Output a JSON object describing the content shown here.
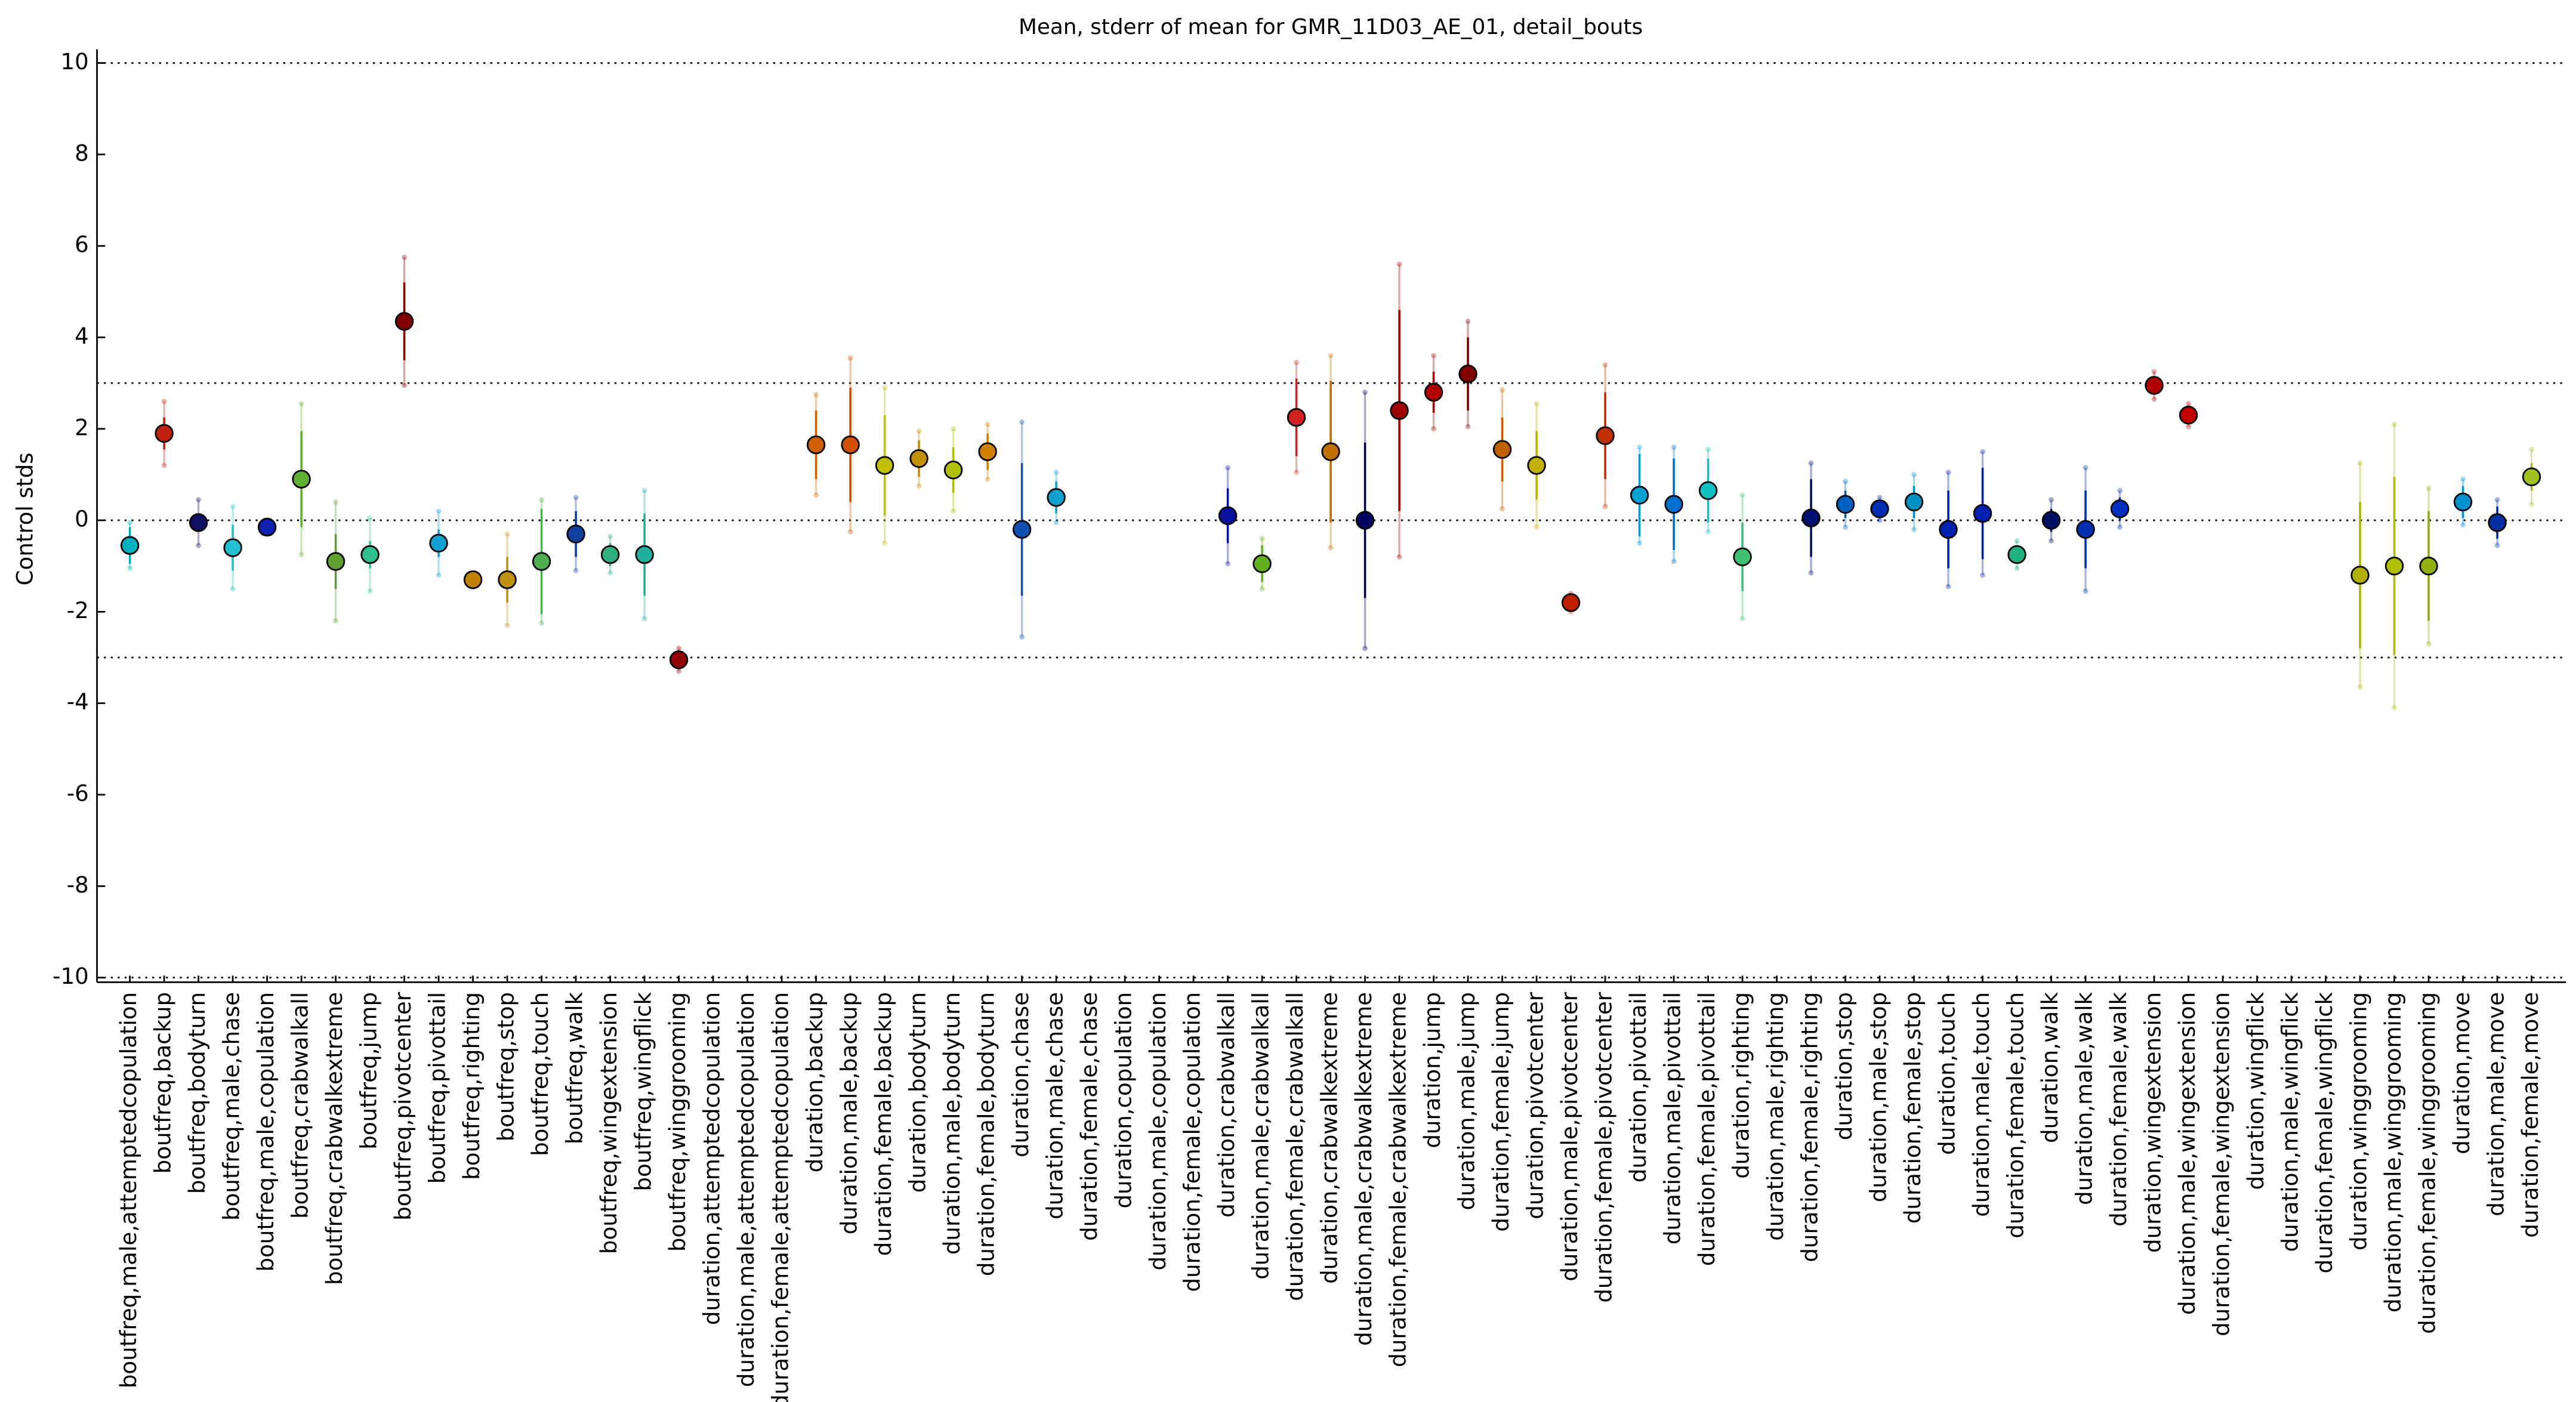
{
  "chart_data": {
    "type": "errorbar",
    "title": "Mean, stderr of mean for GMR_11D03_AE_01, detail_bouts",
    "ylabel": "Control stds",
    "ylim": [
      -10.1,
      10.3
    ],
    "yticks": [
      -10,
      -8,
      -6,
      -4,
      -2,
      0,
      2,
      4,
      6,
      8,
      10
    ],
    "reference_lines": [
      -10,
      -3,
      0,
      3,
      10
    ],
    "categories": [
      "boutfreq,male,attemptedcopulation",
      "boutfreq,backup",
      "boutfreq,bodyturn",
      "boutfreq,male,chase",
      "boutfreq,male,copulation",
      "boutfreq,crabwalkall",
      "boutfreq,crabwalkextreme",
      "boutfreq,jump",
      "boutfreq,pivotcenter",
      "boutfreq,pivottail",
      "boutfreq,righting",
      "boutfreq,stop",
      "boutfreq,touch",
      "boutfreq,walk",
      "boutfreq,wingextension",
      "boutfreq,wingflick",
      "boutfreq,winggrooming",
      "duration,attemptedcopulation",
      "duration,male,attemptedcopulation",
      "duration,female,attemptedcopulation",
      "duration,backup",
      "duration,male,backup",
      "duration,female,backup",
      "duration,bodyturn",
      "duration,male,bodyturn",
      "duration,female,bodyturn",
      "duration,chase",
      "duration,male,chase",
      "duration,female,chase",
      "duration,copulation",
      "duration,male,copulation",
      "duration,female,copulation",
      "duration,crabwalkall",
      "duration,male,crabwalkall",
      "duration,female,crabwalkall",
      "duration,crabwalkextreme",
      "duration,male,crabwalkextreme",
      "duration,female,crabwalkextreme",
      "duration,jump",
      "duration,male,jump",
      "duration,female,jump",
      "duration,pivotcenter",
      "duration,male,pivotcenter",
      "duration,female,pivotcenter",
      "duration,pivottail",
      "duration,male,pivottail",
      "duration,female,pivottail",
      "duration,righting",
      "duration,male,righting",
      "duration,female,righting",
      "duration,stop",
      "duration,male,stop",
      "duration,female,stop",
      "duration,touch",
      "duration,male,touch",
      "duration,female,touch",
      "duration,walk",
      "duration,male,walk",
      "duration,female,walk",
      "duration,wingextension",
      "duration,male,wingextension",
      "duration,female,wingextension",
      "duration,wingflick",
      "duration,male,wingflick",
      "duration,female,wingflick",
      "duration,winggrooming",
      "duration,male,winggrooming",
      "duration,female,winggrooming",
      "duration,move",
      "duration,male,move",
      "duration,female,move"
    ],
    "values": [
      -0.55,
      1.9,
      -0.05,
      -0.6,
      -0.15,
      0.9,
      -0.9,
      -0.75,
      4.35,
      -0.5,
      -1.3,
      -1.3,
      -0.9,
      -0.3,
      -0.75,
      -0.75,
      -3.05,
      null,
      null,
      null,
      1.65,
      1.65,
      1.2,
      1.35,
      1.1,
      1.5,
      -0.2,
      0.5,
      null,
      null,
      null,
      null,
      0.1,
      -0.95,
      2.25,
      1.5,
      0.0,
      2.4,
      2.8,
      3.2,
      1.55,
      1.2,
      -1.8,
      1.85,
      0.55,
      0.35,
      0.65,
      -0.8,
      null,
      0.05,
      0.35,
      0.25,
      0.4,
      -0.2,
      0.15,
      -0.75,
      0.0,
      -0.2,
      0.25,
      2.95,
      2.3,
      null,
      null,
      null,
      null,
      -1.2,
      -1.0,
      -1.0,
      0.4,
      -0.05,
      0.95
    ],
    "errors": [
      0.4,
      0.35,
      0.2,
      0.5,
      0.1,
      1.05,
      0.6,
      0.3,
      0.85,
      0.3,
      0.1,
      0.5,
      1.15,
      0.5,
      0.25,
      0.9,
      0.15,
      null,
      null,
      null,
      0.75,
      1.25,
      1.1,
      0.4,
      0.5,
      0.4,
      1.45,
      0.35,
      null,
      null,
      null,
      null,
      0.6,
      0.4,
      0.85,
      1.55,
      1.7,
      2.2,
      0.45,
      0.8,
      0.7,
      0.75,
      0.1,
      0.95,
      0.9,
      1.0,
      0.7,
      0.75,
      null,
      0.85,
      0.3,
      0.15,
      0.35,
      0.85,
      1.0,
      0.2,
      0.25,
      0.85,
      0.25,
      0.2,
      0.15,
      null,
      null,
      null,
      null,
      1.6,
      1.95,
      1.2,
      0.35,
      0.35,
      0.3
    ],
    "spread": [
      0.5,
      0.7,
      0.5,
      0.9,
      0.15,
      1.65,
      1.3,
      0.8,
      1.4,
      0.7,
      0.15,
      1.0,
      1.35,
      0.8,
      0.4,
      1.4,
      0.25,
      null,
      null,
      null,
      1.1,
      1.9,
      1.7,
      0.6,
      0.9,
      0.6,
      2.35,
      0.55,
      null,
      null,
      null,
      null,
      1.05,
      0.55,
      1.2,
      2.1,
      2.8,
      3.2,
      0.8,
      1.15,
      1.3,
      1.35,
      0.2,
      1.55,
      1.05,
      1.25,
      0.9,
      1.35,
      null,
      1.2,
      0.5,
      0.25,
      0.6,
      1.25,
      1.35,
      0.3,
      0.45,
      1.35,
      0.4,
      0.3,
      0.25,
      null,
      null,
      null,
      null,
      2.45,
      3.1,
      1.7,
      0.5,
      0.5,
      0.6
    ],
    "colors": [
      "#00b0c0",
      "#c02010",
      "#101060",
      "#20c0d0",
      "#1020b0",
      "#60b030",
      "#60a030",
      "#30c090",
      "#800000",
      "#10a0d0",
      "#c08000",
      "#c09010",
      "#50b050",
      "#1040a0",
      "#30b080",
      "#20b0a0",
      "#900000",
      "#999999",
      "#999999",
      "#999999",
      "#d06000",
      "#d05000",
      "#c0c000",
      "#c09000",
      "#b0c000",
      "#d08000",
      "#1050b0",
      "#10a0d0",
      "#999999",
      "#999999",
      "#999999",
      "#999999",
      "#0810a0",
      "#60b020",
      "#d02020",
      "#c07000",
      "#000060",
      "#a00000",
      "#b00000",
      "#800000",
      "#c06000",
      "#c0b000",
      "#c02000",
      "#c03000",
      "#00a0d0",
      "#0070d0",
      "#10c0c0",
      "#40c070",
      "#999999",
      "#001070",
      "#0060c0",
      "#0030b0",
      "#0090c0",
      "#0020b0",
      "#0020b0",
      "#20b080",
      "#001060",
      "#0030b0",
      "#0030c0",
      "#b00000",
      "#c00000",
      "#999999",
      "#999999",
      "#999999",
      "#999999",
      "#b0b000",
      "#b0c000",
      "#90b010",
      "#0090d0",
      "#0030a0",
      "#a0c020"
    ]
  }
}
